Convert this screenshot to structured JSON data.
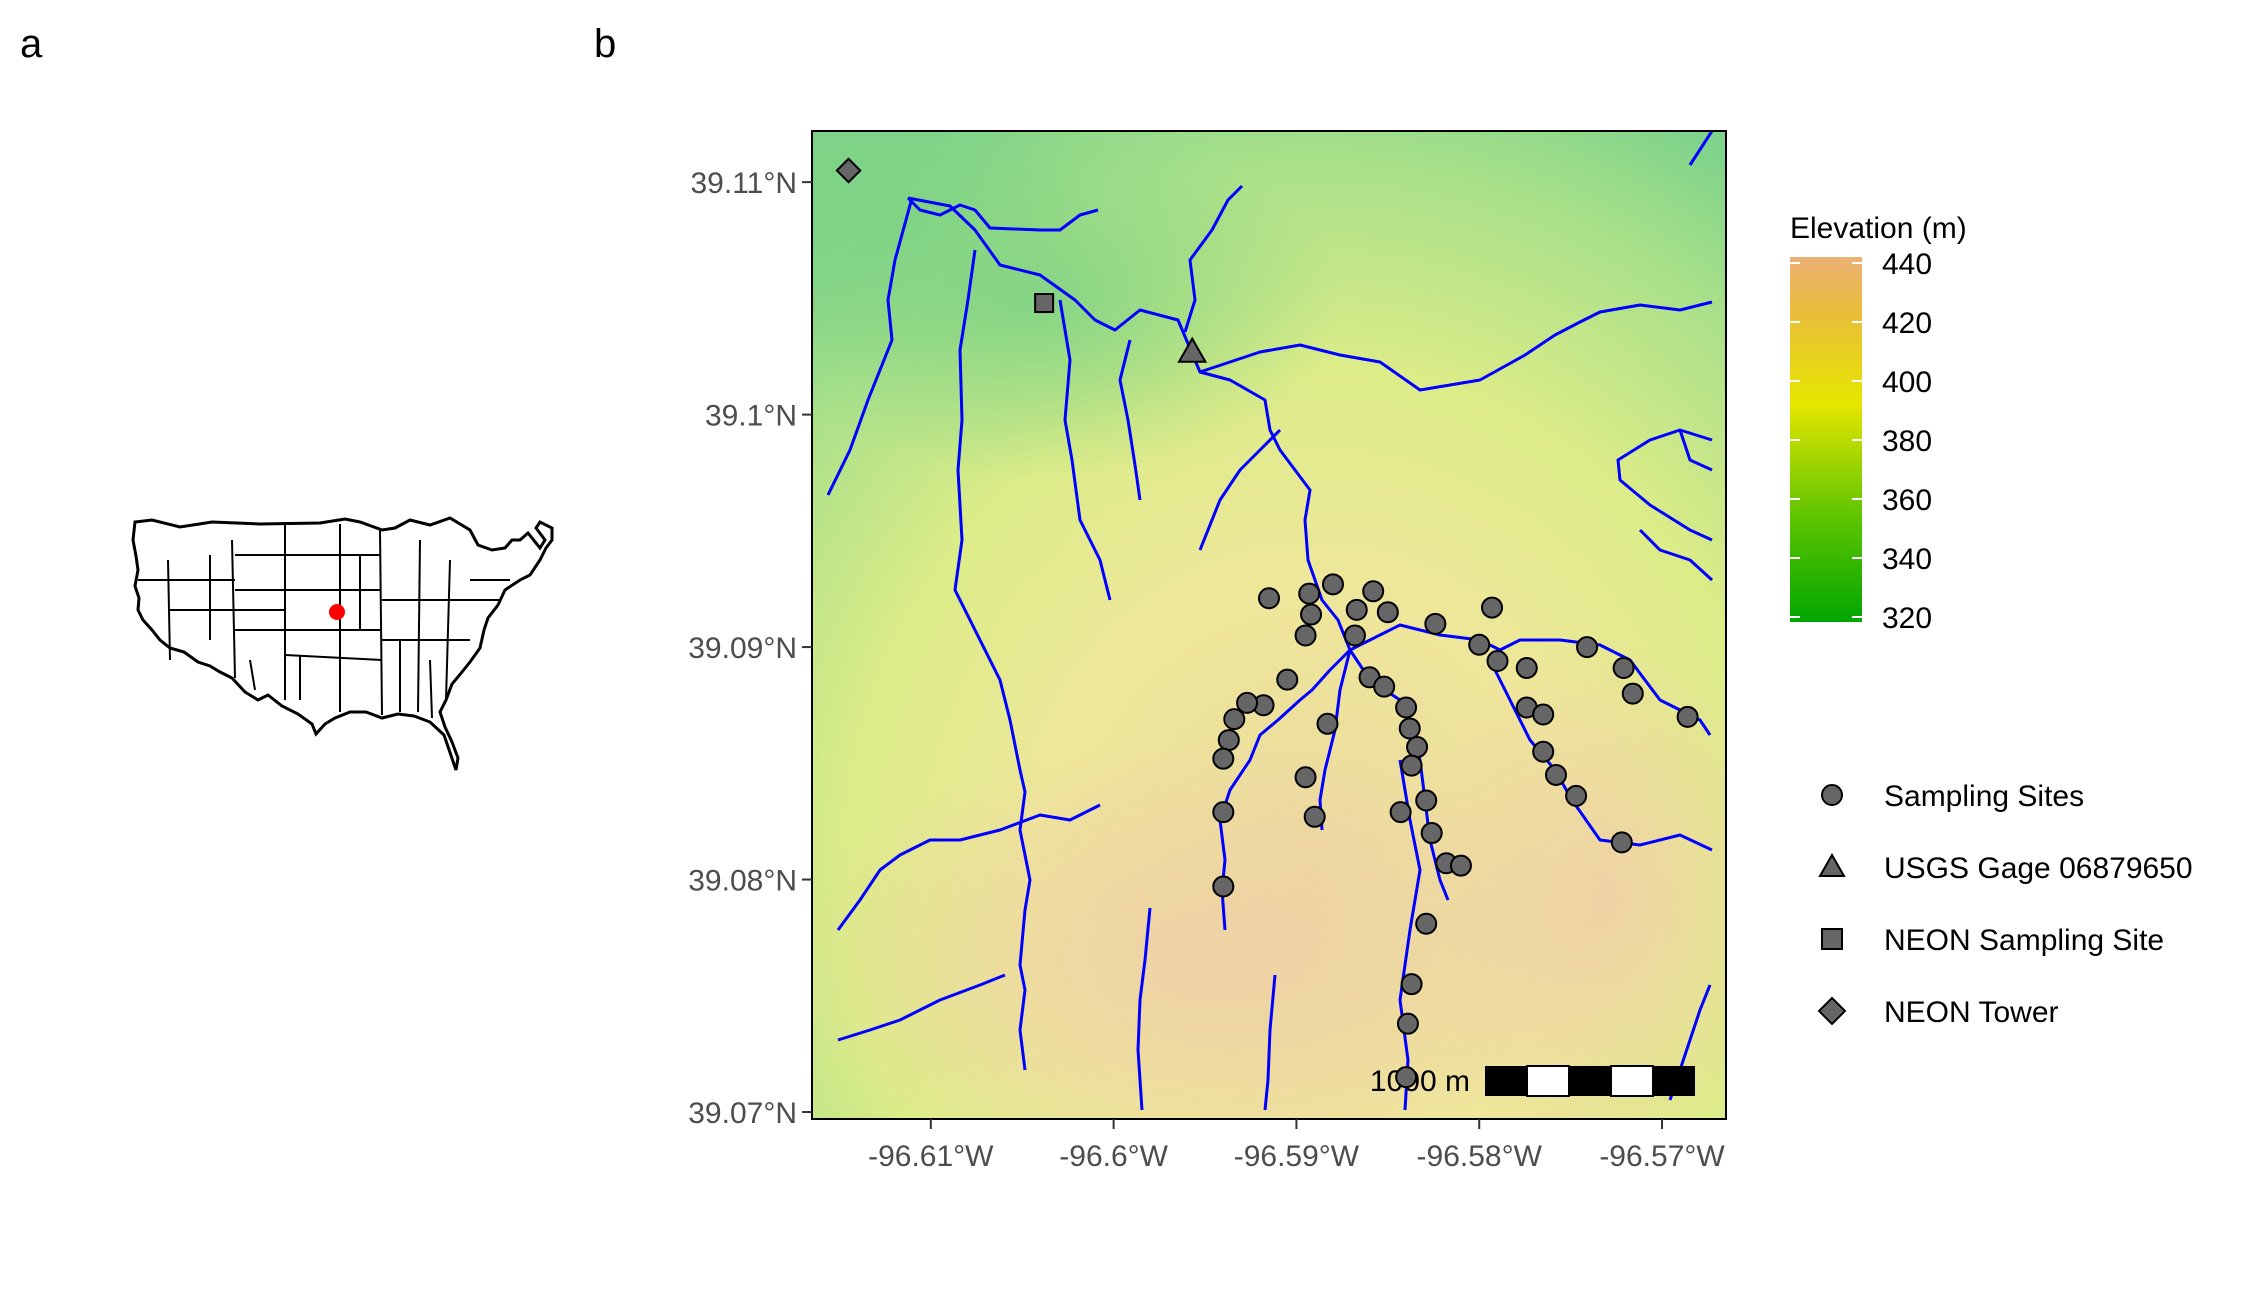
{
  "panel_labels": {
    "a": "a",
    "b": "b"
  },
  "inset_map": {
    "highlight_color": "#ff0000"
  },
  "map": {
    "lon_range": [
      -96.6165,
      -96.5665
    ],
    "lat_range": [
      39.0697,
      39.1122
    ],
    "x_ticks": [
      {
        "value": -96.61,
        "label": "-96.61°W"
      },
      {
        "value": -96.6,
        "label": "-96.6°W"
      },
      {
        "value": -96.59,
        "label": "-96.59°W"
      },
      {
        "value": -96.58,
        "label": "-96.58°W"
      },
      {
        "value": -96.57,
        "label": "-96.57°W"
      }
    ],
    "y_ticks": [
      {
        "value": 39.11,
        "label": "39.11°N"
      },
      {
        "value": 39.1,
        "label": "39.1°N"
      },
      {
        "value": 39.09,
        "label": "39.09°N"
      },
      {
        "value": 39.08,
        "label": "39.08°N"
      },
      {
        "value": 39.07,
        "label": "39.07°N"
      }
    ],
    "stream_color": "#0000ff",
    "scale_bar": {
      "label": "1000 m"
    }
  },
  "elevation_legend": {
    "title": "Elevation (m)",
    "range": [
      320,
      440
    ],
    "ticks": [
      {
        "value": 440,
        "label": "440"
      },
      {
        "value": 420,
        "label": "420"
      },
      {
        "value": 400,
        "label": "400"
      },
      {
        "value": 380,
        "label": "380"
      },
      {
        "value": 360,
        "label": "360"
      },
      {
        "value": 340,
        "label": "340"
      },
      {
        "value": 320,
        "label": "320"
      }
    ],
    "colors": [
      "#00a600",
      "#63c600",
      "#e6e600",
      "#e9bd3a",
      "#ecb176"
    ]
  },
  "point_legend": {
    "items": [
      {
        "shape": "circle",
        "label": "Sampling Sites"
      },
      {
        "shape": "triangle",
        "label": "USGS Gage 06879650"
      },
      {
        "shape": "square",
        "label": "NEON Sampling Site"
      },
      {
        "shape": "diamond",
        "label": "NEON Tower"
      }
    ],
    "fill": "#666666"
  },
  "points": {
    "neon_tower": [
      [
        -96.6145,
        39.1105
      ]
    ],
    "usgs_gage": [
      [
        -96.5957,
        39.1027
      ]
    ],
    "neon_site": [
      [
        -96.6038,
        39.1048
      ]
    ],
    "sampling_sites": [
      [
        -96.588,
        39.0927
      ],
      [
        -96.5893,
        39.0923
      ],
      [
        -96.5858,
        39.0924
      ],
      [
        -96.5915,
        39.0921
      ],
      [
        -96.5892,
        39.0914
      ],
      [
        -96.5867,
        39.0916
      ],
      [
        -96.585,
        39.0915
      ],
      [
        -96.5824,
        39.091
      ],
      [
        -96.5895,
        39.0905
      ],
      [
        -96.5868,
        39.0905
      ],
      [
        -96.5793,
        39.0917
      ],
      [
        -96.58,
        39.0901
      ],
      [
        -96.579,
        39.0894
      ],
      [
        -96.5774,
        39.0891
      ],
      [
        -96.5741,
        39.09
      ],
      [
        -96.5721,
        39.0891
      ],
      [
        -96.5716,
        39.088
      ],
      [
        -96.5686,
        39.087
      ],
      [
        -96.5905,
        39.0886
      ],
      [
        -96.586,
        39.0887
      ],
      [
        -96.5852,
        39.0883
      ],
      [
        -96.584,
        39.0874
      ],
      [
        -96.5918,
        39.0875
      ],
      [
        -96.5927,
        39.0876
      ],
      [
        -96.5934,
        39.0869
      ],
      [
        -96.5937,
        39.086
      ],
      [
        -96.594,
        39.0852
      ],
      [
        -96.5883,
        39.0867
      ],
      [
        -96.5838,
        39.0865
      ],
      [
        -96.5834,
        39.0857
      ],
      [
        -96.5837,
        39.0849
      ],
      [
        -96.5774,
        39.0874
      ],
      [
        -96.5765,
        39.0871
      ],
      [
        -96.5765,
        39.0855
      ],
      [
        -96.5758,
        39.0845
      ],
      [
        -96.5747,
        39.0836
      ],
      [
        -96.5895,
        39.0844
      ],
      [
        -96.5829,
        39.0834
      ],
      [
        -96.594,
        39.0829
      ],
      [
        -96.589,
        39.0827
      ],
      [
        -96.5843,
        39.0829
      ],
      [
        -96.5826,
        39.082
      ],
      [
        -96.5818,
        39.0807
      ],
      [
        -96.581,
        39.0806
      ],
      [
        -96.5722,
        39.0816
      ],
      [
        -96.594,
        39.0797
      ],
      [
        -96.5829,
        39.0781
      ],
      [
        -96.5837,
        39.0755
      ],
      [
        -96.5839,
        39.0738
      ],
      [
        -96.584,
        39.0715
      ]
    ]
  }
}
